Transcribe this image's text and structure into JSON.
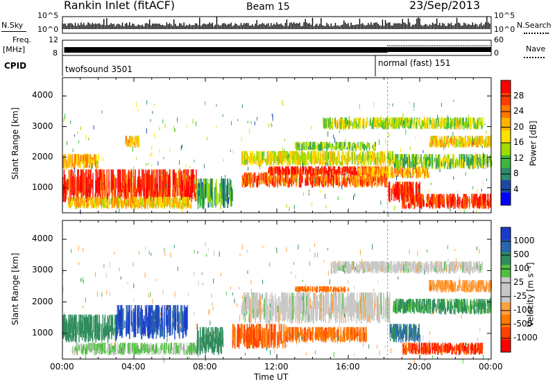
{
  "header": {
    "title": "Rankin Inlet (fitACF)",
    "beam": "Beam 15",
    "date": "23/Sep/2013"
  },
  "top_panels": {
    "nsky_label": "N.Sky",
    "nsky_ticks": [
      "10^5",
      "10^0"
    ],
    "nsearch_label": "N.Search",
    "nsearch_ticks": [
      "10^5",
      "10^0"
    ],
    "freq_label": "Freq.",
    "freq_unit": "[MHz]",
    "freq_ticks": [
      "12",
      "8"
    ],
    "nave_label": "Nave",
    "nave_ticks": [
      "60",
      "0"
    ],
    "cpid_label": "CPID",
    "cpid_modes": [
      "twofsound 3501",
      "normal (fast) 151"
    ]
  },
  "colorbars": {
    "power_label": "Power [dB]",
    "power_ticks": [
      "28",
      "24",
      "20",
      "16",
      "12",
      "8",
      "4"
    ],
    "power_colors": [
      "#ff0000",
      "#ff3c00",
      "#ff7800",
      "#ffb400",
      "#ffe000",
      "#a0dc00",
      "#3cb83c",
      "#2e8c6c",
      "#1a4aa6",
      "#0000ff"
    ],
    "velocity_label": "Velocity [m s⁻¹]",
    "velocity_ticks": [
      "1000",
      "500",
      "100",
      "25",
      "-25",
      "-100",
      "-500",
      "-1000"
    ],
    "velocity_colors": [
      "#1a3ccc",
      "#2a66b0",
      "#2e8c5c",
      "#50c040",
      "#c8c8c8",
      "#c8c8c8",
      "#ffa040",
      "#ff7800",
      "#ff4000",
      "#ff0000"
    ]
  },
  "chart_data": [
    {
      "type": "heatmap",
      "title": "Power",
      "xlabel": "Time UT",
      "ylabel": "Slant Range [km]",
      "x_ticks": [
        "00:00",
        "04:00",
        "08:00",
        "12:00",
        "16:00",
        "20:00",
        "00:00"
      ],
      "y_ticks": [
        1000,
        2000,
        3000,
        4000
      ],
      "xlim_hours": [
        0,
        24
      ],
      "ylim_km": [
        180,
        4600
      ],
      "colorbar": "Power [dB]",
      "zlim_db": [
        0,
        30
      ],
      "regions": [
        {
          "t0": 0.0,
          "t1": 7.5,
          "r0": 500,
          "r1": 1600,
          "db": 27
        },
        {
          "t0": 0.3,
          "t1": 7.2,
          "r0": 300,
          "r1": 700,
          "db": 18
        },
        {
          "t0": 0.0,
          "t1": 2.0,
          "r0": 1600,
          "r1": 2100,
          "db": 20
        },
        {
          "t0": 7.5,
          "t1": 9.5,
          "r0": 300,
          "r1": 1300,
          "db": 10
        },
        {
          "t0": 10.0,
          "t1": 18.2,
          "r0": 1000,
          "r1": 1500,
          "db": 24
        },
        {
          "t0": 11.5,
          "t1": 18.2,
          "r0": 1400,
          "r1": 1700,
          "db": 27
        },
        {
          "t0": 10.0,
          "t1": 18.5,
          "r0": 1700,
          "r1": 2200,
          "db": 16
        },
        {
          "t0": 13.0,
          "t1": 17.5,
          "r0": 2200,
          "r1": 2500,
          "db": 13
        },
        {
          "t0": 16.5,
          "t1": 20.5,
          "r0": 1300,
          "r1": 1700,
          "db": 20
        },
        {
          "t0": 18.2,
          "t1": 20.0,
          "r0": 500,
          "r1": 1200,
          "db": 28
        },
        {
          "t0": 19.0,
          "t1": 24.0,
          "r0": 300,
          "r1": 800,
          "db": 26
        },
        {
          "t0": 18.5,
          "t1": 24.0,
          "r0": 1600,
          "r1": 2100,
          "db": 12
        },
        {
          "t0": 14.5,
          "t1": 23.5,
          "r0": 2900,
          "r1": 3300,
          "db": 14
        },
        {
          "t0": 20.5,
          "t1": 24.0,
          "r0": 2300,
          "r1": 2700,
          "db": 18
        },
        {
          "t0": 3.5,
          "t1": 4.3,
          "r0": 2300,
          "r1": 2700,
          "db": 20
        }
      ]
    },
    {
      "type": "heatmap",
      "title": "Velocity",
      "xlabel": "Time UT",
      "ylabel": "Slant Range [km]",
      "x_ticks": [
        "00:00",
        "04:00",
        "08:00",
        "12:00",
        "16:00",
        "20:00",
        "00:00"
      ],
      "y_ticks": [
        1000,
        2000,
        3000,
        4000
      ],
      "xlim_hours": [
        0,
        24
      ],
      "ylim_km": [
        180,
        4600
      ],
      "colorbar": "Velocity [m s⁻¹]",
      "regions": [
        {
          "t0": 0.0,
          "t1": 3.0,
          "r0": 700,
          "r1": 1600,
          "v": 200
        },
        {
          "t0": 3.0,
          "t1": 7.0,
          "r0": 800,
          "r1": 1900,
          "v": 800
        },
        {
          "t0": 0.5,
          "t1": 7.5,
          "r0": 300,
          "r1": 700,
          "v": 30
        },
        {
          "t0": 7.5,
          "t1": 9.0,
          "r0": 300,
          "r1": 1200,
          "v": 150
        },
        {
          "t0": 9.5,
          "t1": 12.5,
          "r0": 500,
          "r1": 1300,
          "v": -400
        },
        {
          "t0": 12.5,
          "t1": 17.0,
          "r0": 700,
          "r1": 1200,
          "v": -300
        },
        {
          "t0": 10.0,
          "t1": 18.3,
          "r0": 1300,
          "r1": 2300,
          "v": 0
        },
        {
          "t0": 18.3,
          "t1": 20.0,
          "r0": 700,
          "r1": 1300,
          "v": 300
        },
        {
          "t0": 19.0,
          "t1": 23.5,
          "r0": 300,
          "r1": 700,
          "v": -600
        },
        {
          "t0": 18.5,
          "t1": 24.0,
          "r0": 1600,
          "r1": 2100,
          "v": 80
        },
        {
          "t0": 15.0,
          "t1": 23.5,
          "r0": 2900,
          "r1": 3300,
          "v": 0
        },
        {
          "t0": 20.5,
          "t1": 24.0,
          "r0": 2300,
          "r1": 2700,
          "v": -80
        },
        {
          "t0": 13.0,
          "t1": 16.0,
          "r0": 2300,
          "r1": 2500,
          "v": -300
        }
      ]
    }
  ]
}
